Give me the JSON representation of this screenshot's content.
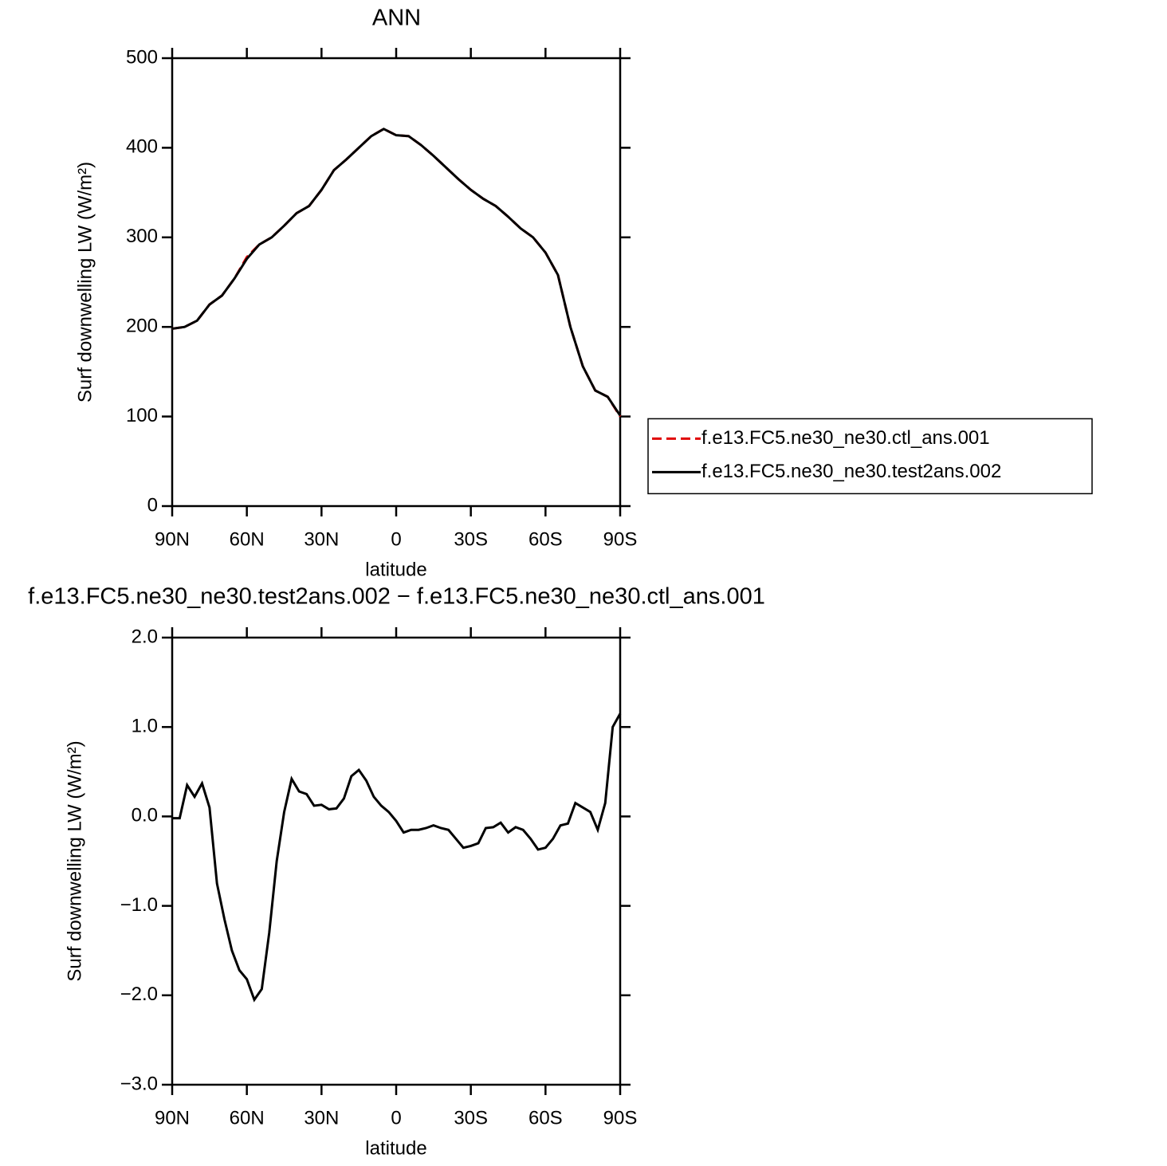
{
  "chart_data": [
    {
      "type": "line",
      "title": "ANN",
      "xlabel": "latitude",
      "ylabel": "Surf downwelling LW (W/m²)",
      "x": [
        90,
        85,
        80,
        75,
        70,
        65,
        60,
        55,
        50,
        45,
        40,
        35,
        30,
        25,
        20,
        15,
        10,
        5,
        0,
        -5,
        -10,
        -15,
        -20,
        -25,
        -30,
        -35,
        -40,
        -45,
        -50,
        -55,
        -60,
        -65,
        -70,
        -75,
        -80,
        -85,
        -90
      ],
      "series": [
        {
          "name": "f.e13.FC5.ne30_ne30.ctl_ans.001",
          "color": "#e00000",
          "dashed": true,
          "values": [
            198,
            200,
            207,
            225,
            235,
            254,
            278,
            292,
            300,
            313,
            327,
            335,
            353,
            375,
            387,
            400,
            413,
            421,
            414,
            413,
            403,
            391,
            378,
            365,
            353,
            343,
            335,
            323,
            310,
            300,
            283,
            258,
            200,
            156,
            129,
            122,
            100
          ]
        },
        {
          "name": "f.e13.FC5.ne30_ne30.test2ans.002",
          "color": "#000000",
          "dashed": false,
          "values": [
            198,
            200,
            207,
            225,
            235,
            254,
            276,
            292,
            300,
            313,
            327,
            335,
            353,
            375,
            387,
            400,
            413,
            421,
            414,
            413,
            403,
            391,
            378,
            365,
            353,
            343,
            335,
            323,
            310,
            300,
            283,
            258,
            200,
            156,
            129,
            122,
            101
          ]
        }
      ],
      "xlim": [
        90,
        -90
      ],
      "xticks": [
        {
          "value": 90,
          "label": "90N"
        },
        {
          "value": 60,
          "label": "60N"
        },
        {
          "value": 30,
          "label": "30N"
        },
        0,
        {
          "value": -30,
          "label": "30S"
        },
        {
          "value": -60,
          "label": "60S"
        },
        {
          "value": -90,
          "label": "90S"
        }
      ],
      "ylim": [
        0,
        500
      ],
      "yticks": [
        0,
        100,
        200,
        300,
        400,
        500
      ],
      "legend": "right"
    },
    {
      "type": "line",
      "title": "f.e13.FC5.ne30_ne30.test2ans.002 − f.e13.FC5.ne30_ne30.ctl_ans.001",
      "xlabel": "latitude",
      "ylabel": "Surf downwelling LW (W/m²)",
      "x": [
        90,
        87,
        84,
        81,
        78,
        75,
        72,
        69,
        66,
        63,
        60,
        57,
        54,
        51,
        48,
        45,
        42,
        39,
        36,
        33,
        30,
        27,
        24,
        21,
        18,
        15,
        12,
        9,
        6,
        3,
        0,
        -3,
        -6,
        -9,
        -12,
        -15,
        -18,
        -21,
        -24,
        -27,
        -30,
        -33,
        -36,
        -39,
        -42,
        -45,
        -48,
        -51,
        -54,
        -57,
        -60,
        -63,
        -66,
        -69,
        -72,
        -75,
        -78,
        -81,
        -84,
        -87,
        -90
      ],
      "series": [
        {
          "color": "#000000",
          "dashed": false,
          "values": [
            -0.02,
            -0.02,
            0.35,
            0.22,
            0.37,
            0.1,
            -0.75,
            -1.15,
            -1.5,
            -1.72,
            -1.82,
            -2.05,
            -1.93,
            -1.3,
            -0.5,
            0.05,
            0.42,
            0.28,
            0.25,
            0.12,
            0.13,
            0.08,
            0.09,
            0.2,
            0.45,
            0.52,
            0.4,
            0.22,
            0.12,
            0.05,
            -0.05,
            -0.18,
            -0.15,
            -0.15,
            -0.13,
            -0.1,
            -0.13,
            -0.15,
            -0.25,
            -0.35,
            -0.33,
            -0.3,
            -0.13,
            -0.12,
            -0.07,
            -0.18,
            -0.12,
            -0.15,
            -0.25,
            -0.37,
            -0.35,
            -0.25,
            -0.1,
            -0.08,
            0.15,
            0.1,
            0.05,
            -0.15,
            0.15,
            1.0,
            1.15
          ]
        }
      ],
      "xlim": [
        90,
        -90
      ],
      "xticks": [
        {
          "value": 90,
          "label": "90N"
        },
        {
          "value": 60,
          "label": "60N"
        },
        {
          "value": 30,
          "label": "30N"
        },
        0,
        {
          "value": -30,
          "label": "30S"
        },
        {
          "value": -60,
          "label": "60S"
        },
        {
          "value": -90,
          "label": "90S"
        }
      ],
      "ylim": [
        -3,
        2
      ],
      "yticks": [
        {
          "value": -3,
          "label": "−3.0"
        },
        {
          "value": -2,
          "label": "−2.0"
        },
        {
          "value": -1,
          "label": "−1.0"
        },
        {
          "value": 0,
          "label": "0.0"
        },
        {
          "value": 1,
          "label": "1.0"
        },
        {
          "value": 2,
          "label": "2.0"
        }
      ]
    }
  ]
}
